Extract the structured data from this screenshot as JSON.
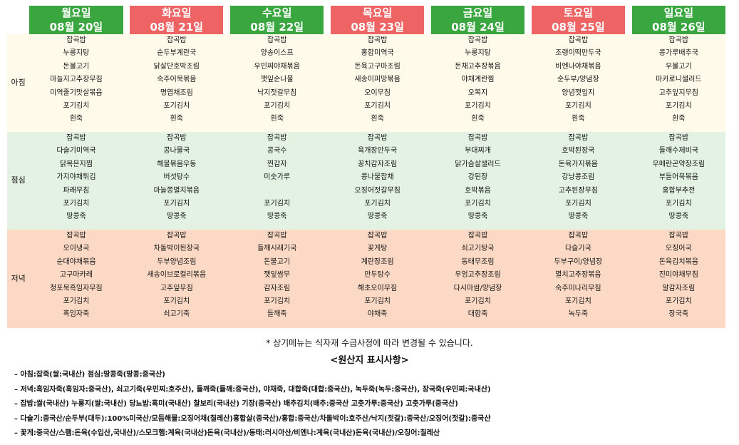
{
  "days": [
    {
      "name": "월요일",
      "date": "08월 20일",
      "color": "green",
      "breakfast": [
        "잡곡밥",
        "누룽지탕",
        "돈불고기",
        "마늘지고추장무침",
        "미역줄기맛살볶음",
        "포기김치",
        "흰죽"
      ],
      "lunch": [
        "잡곡밥",
        "다슬기미역국",
        "닭목은지찜",
        "가지야채튀김",
        "파래무침",
        "포기김치",
        "땅콩죽"
      ],
      "dinner": [
        "잡곡밥",
        "오이냉국",
        "순대야채볶음",
        "고구마카레",
        "청포묵흑임자무침",
        "포기김치",
        "흑임자죽"
      ]
    },
    {
      "name": "화요일",
      "date": "08월 21일",
      "color": "red",
      "breakfast": [
        "잡곡밥",
        "순두부계란국",
        "닭살단호박조림",
        "숙주어묵볶음",
        "명엽채조림",
        "포기김치",
        "흰죽"
      ],
      "lunch": [
        "잡곡밥",
        "콩나물국",
        "해물볶음우동",
        "버섯탕수",
        "마늘쫑멸치볶음",
        "포기김치",
        "땅콩죽"
      ],
      "dinner": [
        "잡곡밥",
        "차돌박이된장국",
        "두부양념조림",
        "새송이브로컬리볶음",
        "고추잎무침",
        "포기김치",
        "쇠고기죽"
      ]
    },
    {
      "name": "수요일",
      "date": "08월 22일",
      "color": "green",
      "breakfast": [
        "잡곡밥",
        "양송이스프",
        "우민찌야채볶음",
        "깻잎순나물",
        "낙지젓갈무침",
        "포기김치",
        "흰죽"
      ],
      "lunch": [
        "잡곡밥",
        "콩국수",
        "찐감자",
        "미숫가루",
        "",
        "포기김치",
        "땅콩죽"
      ],
      "dinner": [
        "잡곡밥",
        "들깨시래기국",
        "돈불고기",
        "깻잎쌈무",
        "감자조림",
        "포기김치",
        "들깨죽"
      ]
    },
    {
      "name": "목요일",
      "date": "08월 23일",
      "color": "red",
      "breakfast": [
        "잡곡밥",
        "홍합미역국",
        "돈육고구마조림",
        "새송이피망볶음",
        "오이무침",
        "포기김치",
        "흰죽"
      ],
      "lunch": [
        "잡곡밥",
        "육개장만두국",
        "꽁치감자조림",
        "콩나물잡채",
        "오징어젓갈무침",
        "포기김치",
        "땅콩죽"
      ],
      "dinner": [
        "잡곡밥",
        "꽃게탕",
        "계란장조림",
        "만두탕수",
        "해초오이무침",
        "포기김치",
        "야채죽"
      ]
    },
    {
      "name": "금요일",
      "date": "08월 24일",
      "color": "green",
      "breakfast": [
        "잡곡밥",
        "누룽지탕",
        "돈채고추장볶음",
        "야채계란찜",
        "오복지",
        "포기김치",
        "흰죽"
      ],
      "lunch": [
        "잡곡밥",
        "부대찌개",
        "닭가슴살샐러드",
        "강된장",
        "호박볶음",
        "포기김치",
        "땅콩죽"
      ],
      "dinner": [
        "잡곡밥",
        "쇠고기탕국",
        "동태무조림",
        "우엉고추장조림",
        "다시마쌈/양념장",
        "포기김치",
        "대합죽"
      ]
    },
    {
      "name": "토요일",
      "date": "08월 25일",
      "color": "red",
      "breakfast": [
        "잡곡밥",
        "조랭이떡만두국",
        "비엔나야채볶음",
        "순두부/양념장",
        "양념깻잎지",
        "포기김치",
        "흰죽"
      ],
      "lunch": [
        "잡곡밥",
        "호박된장국",
        "돈육가지볶음",
        "강낭콩조림",
        "고추된장무침",
        "포기김치",
        "땅콩죽"
      ],
      "dinner": [
        "잡곡밥",
        "다슬기국",
        "두부구이/양념장",
        "멸치고추장볶음",
        "숙주미나리무침",
        "포기김치",
        "녹두죽"
      ]
    },
    {
      "name": "일요일",
      "date": "08월 26일",
      "color": "green",
      "breakfast": [
        "잡곡밥",
        "콩가루배추국",
        "우불고기",
        "마카로니샐러드",
        "고추잎지무침",
        "포기김치",
        "흰죽"
      ],
      "lunch": [
        "잡곡밥",
        "들깨수제비국",
        "우메란곤약장조림",
        "부들어묵볶음",
        "홍합부추전",
        "포기김치",
        "땅콩죽"
      ],
      "dinner": [
        "잡곡밥",
        "오징어국",
        "돈육김치볶음",
        "진미야채무침",
        "알감자조림",
        "포기김치",
        "장국죽"
      ]
    }
  ],
  "meal_labels": {
    "breakfast": "아침",
    "lunch": "점심",
    "dinner": "저녁"
  },
  "colors": {
    "green": "#3aa640",
    "red": "#ee6464",
    "breakfast_bg": "#fffaea",
    "lunch_bg": "#e3f2e3",
    "dinner_bg": "#fbd9c5"
  },
  "notice": "* 상기메뉴는 식자재 수급사정에 따라 변경될 수 있습니다.",
  "origin_title": "<원산지 표시사항>",
  "origin_lines": [
    "– 아침:잡죽(쌀:국내산) 점심:땅콩죽(땅콩:중국산)",
    "– 저녁:흑임자죽(흑임자:중국산), 쇠고기죽(우민찌:호주산), 들깨죽(들깨:중국산), 야채죽, 대합죽(대합:중국산), 녹두죽(녹두:중국산), 장국죽(우민찌:국내산)",
    "– 잡밥:쌀(국내산) 누룽지(쌀:국내산) 당뇨밥:흑미(국내산) 찰보리(국내산) 기장(중국산) 배추김치(배추:중국산 고춧가루:중국산) 고춧가루(중국산)",
    "– 다슬기:중국산/순두부(대두):100%미국산/모듬해물:오징어채(칠레산)홍합살(중국산)/홍합:중국산/차돌박이:호주산/낙지(젓갈):중국산/오징어(젓갈):중국산",
    "– 꽃게:중국산/스팸:돈육(수입산,국내산)/스모크햄:계육(국내산)돈육(국내산)/동태:러시아산/비엔나:계육(국내산)돈육(국내산)/오징어:칠레산"
  ]
}
